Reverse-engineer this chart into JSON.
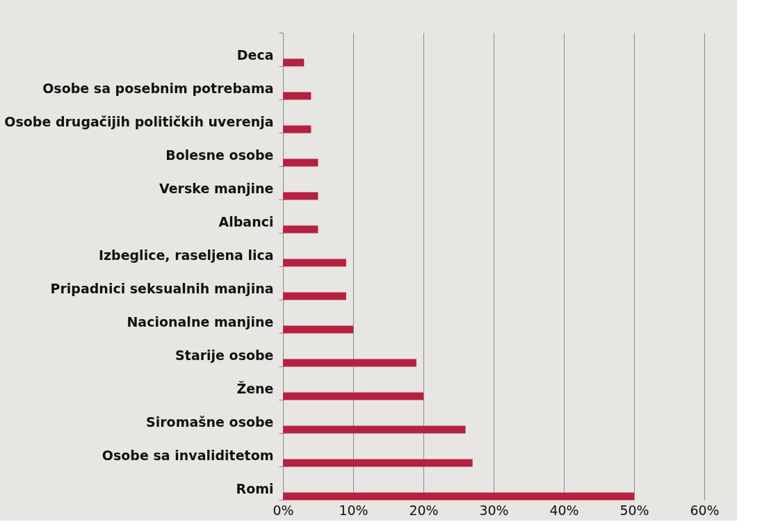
{
  "chart_data": {
    "type": "bar",
    "orientation": "horizontal",
    "categories": [
      "Deca",
      "Osobe sa posebnim potrebama",
      "Osobe drugačijih političkih uverenja",
      "Bolesne osobe",
      "Verske manjine",
      "Albanci",
      "Izbeglice, raseljena lica",
      "Pripadnici seksualnih manjina",
      "Nacionalne manjine",
      "Starije osobe",
      "Žene",
      "Siromašne osobe",
      "Osobe sa invaliditetom",
      "Romi"
    ],
    "values": [
      3,
      4,
      4,
      5,
      5,
      5,
      9,
      9,
      10,
      19,
      20,
      26,
      27,
      50
    ],
    "color": "#b5213f",
    "xlim": [
      0,
      60
    ],
    "xticks": [
      {
        "value": 0,
        "label": "0%"
      },
      {
        "value": 10,
        "label": "10%"
      },
      {
        "value": 20,
        "label": "20%"
      },
      {
        "value": 30,
        "label": "30%"
      },
      {
        "value": 40,
        "label": "40%"
      },
      {
        "value": 50,
        "label": "50%"
      },
      {
        "value": 60,
        "label": "60%"
      }
    ],
    "grid": "x"
  }
}
